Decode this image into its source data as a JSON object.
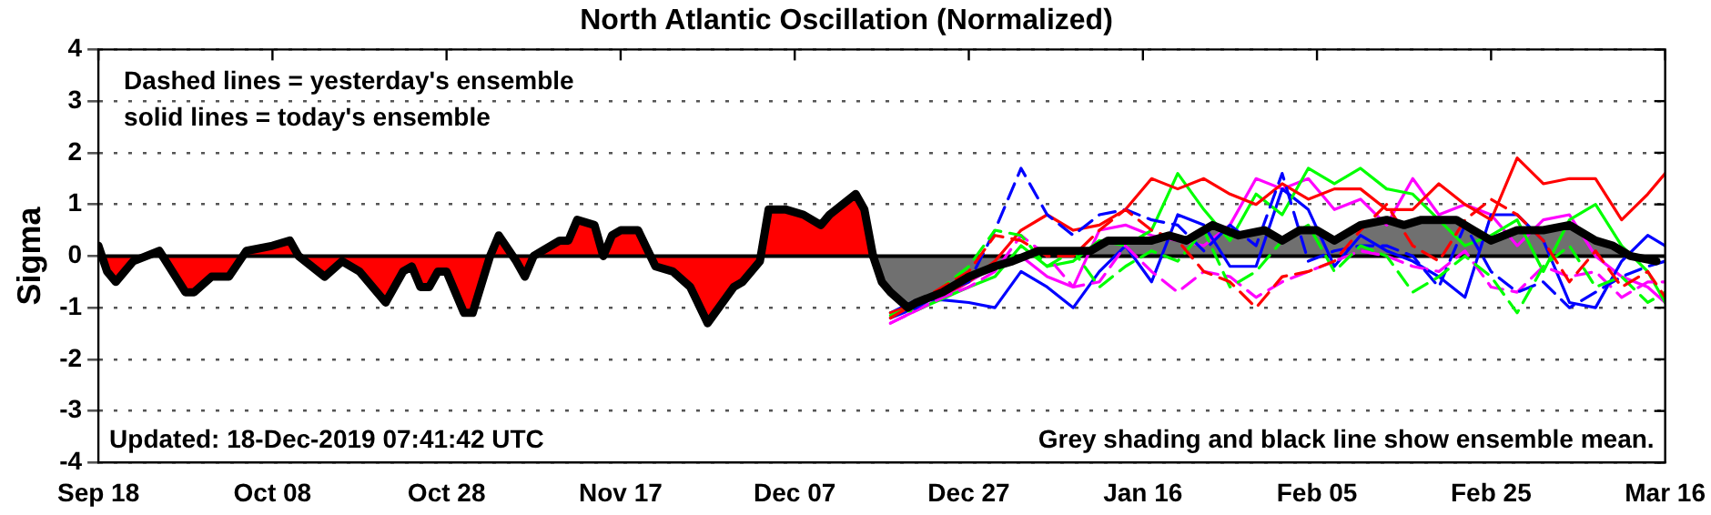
{
  "chart_data": {
    "type": "line",
    "title": "North Atlantic Oscillation (Normalized)",
    "ylabel": "Sigma",
    "annotations": [
      "Dashed lines = yesterday's ensemble",
      "solid lines = today's ensemble",
      "Updated: 18-Dec-2019 07:41:42 UTC",
      "Grey shading and black line show ensemble mean."
    ],
    "x": [
      "2019-12-18",
      "2019-12-21",
      "2019-12-24",
      "2019-12-27",
      "2019-12-30",
      "2020-01-02",
      "2020-01-05",
      "2020-01-08",
      "2020-01-11",
      "2020-01-14",
      "2020-01-17",
      "2020-01-20",
      "2020-01-23",
      "2020-01-26",
      "2020-01-29",
      "2020-02-01",
      "2020-02-04",
      "2020-02-07",
      "2020-02-10",
      "2020-02-13",
      "2020-02-16",
      "2020-02-19",
      "2020-02-22",
      "2020-02-25",
      "2020-02-28",
      "2020-03-02",
      "2020-03-05",
      "2020-03-08",
      "2020-03-11",
      "2020-03-14",
      "2020-03-16"
    ],
    "series": [
      {
        "type": "line",
        "color": "#ff0000",
        "line_style": "dashed",
        "values": [
          -1.2,
          -0.9,
          -0.6,
          -0.3,
          0.4,
          0.3,
          0.0,
          0.0,
          0.5,
          0.9,
          0.5,
          0.3,
          -0.3,
          -0.5,
          -1.0,
          -0.4,
          -0.3,
          -0.1,
          0.5,
          1.0,
          0.2,
          -0.1,
          0.7,
          1.1,
          0.8,
          0.3,
          -0.5,
          0.1,
          -0.6,
          -0.3,
          -0.8
        ]
      },
      {
        "type": "line",
        "color": "#00ff00",
        "line_style": "dashed",
        "values": [
          -1.15,
          -0.95,
          -0.6,
          -0.2,
          0.5,
          0.4,
          -0.2,
          0.1,
          -0.6,
          -0.2,
          0.1,
          -0.1,
          0.5,
          -0.6,
          -0.3,
          0.3,
          0.6,
          -0.3,
          0.2,
          0.0,
          -0.7,
          -0.4,
          0.0,
          -0.4,
          -1.1,
          -0.2,
          0.2,
          -0.6,
          -0.4,
          -0.9,
          -0.7
        ]
      },
      {
        "type": "line",
        "color": "#0000ff",
        "line_style": "dashed",
        "values": [
          -1.2,
          -1.0,
          -0.7,
          -0.5,
          0.5,
          1.7,
          0.8,
          0.4,
          0.8,
          0.9,
          0.7,
          0.6,
          0.1,
          0.6,
          0.2,
          1.6,
          -0.1,
          0.1,
          0.2,
          0.2,
          0.0,
          -0.6,
          0.6,
          -0.3,
          -0.7,
          -0.5,
          -1.0,
          -0.7,
          -0.4,
          -0.2,
          -0.1
        ]
      },
      {
        "type": "line",
        "color": "#ff00ff",
        "line_style": "dashed",
        "values": [
          -1.3,
          -1.05,
          -0.8,
          -0.6,
          -0.3,
          0.4,
          0.0,
          -0.6,
          -0.5,
          0.2,
          -0.3,
          -0.7,
          -0.3,
          -0.4,
          -0.8,
          -0.5,
          -0.3,
          -0.1,
          0.1,
          0.0,
          -0.2,
          -0.3,
          0.1,
          -0.6,
          -0.7,
          -0.2,
          -0.4,
          -0.3,
          -0.8,
          -0.5,
          -0.5
        ]
      },
      {
        "type": "line",
        "color": "#ff0000",
        "line_style": "solid",
        "values": [
          -1.1,
          null,
          -0.75,
          -0.5,
          -0.1,
          0.5,
          0.8,
          0.5,
          0.6,
          0.9,
          1.5,
          1.3,
          1.5,
          1.2,
          1.0,
          1.4,
          1.1,
          1.3,
          1.3,
          0.9,
          0.9,
          1.4,
          1.0,
          0.7,
          1.9,
          1.4,
          1.5,
          1.5,
          0.7,
          1.2,
          1.6
        ]
      },
      {
        "type": "line",
        "color": "#00ff00",
        "line_style": "solid",
        "values": [
          -1.1,
          -1.05,
          null,
          -0.6,
          -0.4,
          0.2,
          -0.2,
          -0.1,
          0.3,
          0.2,
          0.5,
          1.6,
          0.9,
          0.3,
          1.2,
          0.8,
          1.7,
          1.4,
          1.7,
          1.3,
          1.2,
          0.7,
          0.2,
          0.4,
          0.7,
          -0.3,
          0.7,
          1.0,
          0.2,
          -0.3,
          -0.9
        ]
      },
      {
        "type": "line",
        "color": "#0000ff",
        "line_style": "solid",
        "values": [
          -1.1,
          -0.85,
          -0.85,
          -0.9,
          -1.0,
          -0.3,
          -0.6,
          -1.0,
          -0.3,
          0.2,
          -0.5,
          0.8,
          0.6,
          -0.2,
          -0.2,
          1.3,
          0.9,
          -0.2,
          0.4,
          0.1,
          -0.1,
          -0.4,
          -0.8,
          0.8,
          0.8,
          0.3,
          -0.9,
          -1.0,
          -0.1,
          0.4,
          0.2
        ]
      },
      {
        "type": "line",
        "color": "#ff00ff",
        "line_style": "solid",
        "values": [
          -1.3,
          -1.05,
          -0.8,
          -0.5,
          -0.2,
          0.0,
          -0.4,
          -0.6,
          0.5,
          0.6,
          0.4,
          0.3,
          0.2,
          0.6,
          1.5,
          1.3,
          1.5,
          0.9,
          1.1,
          0.6,
          1.5,
          0.8,
          1.0,
          0.8,
          0.2,
          0.7,
          0.8,
          0.0,
          -0.4,
          -0.6,
          -0.9
        ]
      },
      {
        "type": "area",
        "color": "#ff0000",
        "x": [
          "2019-09-18",
          "2019-09-19",
          "2019-09-20",
          "2019-09-22",
          "2019-09-25",
          "2019-09-28",
          "2019-09-29",
          "2019-10-01",
          "2019-10-03",
          "2019-10-05",
          "2019-10-08",
          "2019-10-10",
          "2019-10-11",
          "2019-10-14",
          "2019-10-16",
          "2019-10-18",
          "2019-10-21",
          "2019-10-23",
          "2019-10-24",
          "2019-10-25",
          "2019-10-26",
          "2019-10-27",
          "2019-10-28",
          "2019-10-30",
          "2019-10-31",
          "2019-11-02",
          "2019-11-03",
          "2019-11-05",
          "2019-11-06",
          "2019-11-07",
          "2019-11-08",
          "2019-11-10",
          "2019-11-11",
          "2019-11-12",
          "2019-11-14",
          "2019-11-15",
          "2019-11-16",
          "2019-11-17",
          "2019-11-19",
          "2019-11-21",
          "2019-11-23",
          "2019-11-25",
          "2019-11-27",
          "2019-11-30",
          "2019-12-01",
          "2019-12-03",
          "2019-12-04",
          "2019-12-06",
          "2019-12-08",
          "2019-12-10",
          "2019-12-11",
          "2019-12-14",
          "2019-12-15",
          "2019-12-16"
        ],
        "values": [
          0.2,
          -0.3,
          -0.5,
          -0.1,
          0.1,
          -0.7,
          -0.7,
          -0.4,
          -0.4,
          0.1,
          0.2,
          0.3,
          0.0,
          -0.4,
          -0.1,
          -0.3,
          -0.9,
          -0.3,
          -0.2,
          -0.6,
          -0.6,
          -0.3,
          -0.3,
          -1.1,
          -1.1,
          0.0,
          0.4,
          -0.1,
          -0.4,
          0.0,
          0.1,
          0.3,
          0.3,
          0.7,
          0.6,
          0.0,
          0.4,
          0.5,
          0.5,
          -0.2,
          -0.3,
          -0.6,
          -1.3,
          -0.6,
          -0.5,
          -0.1,
          0.9,
          0.9,
          0.8,
          0.6,
          0.8,
          1.2,
          0.9,
          0.0
        ]
      },
      {
        "type": "area",
        "color": "#707070",
        "x": [
          "2019-12-16",
          "2019-12-17",
          "2019-12-18",
          "2019-12-20",
          "2019-12-21",
          "2019-12-24",
          "2019-12-27",
          "2019-12-30",
          "2020-01-01",
          "2020-01-04",
          "2020-01-07",
          "2020-01-10",
          "2020-01-12",
          "2020-01-15",
          "2020-01-17",
          "2020-01-19",
          "2020-01-21",
          "2020-01-22",
          "2020-01-24",
          "2020-01-27",
          "2020-01-30",
          "2020-02-01",
          "2020-02-03",
          "2020-02-05",
          "2020-02-07",
          "2020-02-10",
          "2020-02-13",
          "2020-02-15",
          "2020-02-17",
          "2020-02-21",
          "2020-02-23",
          "2020-02-25",
          "2020-02-28",
          "2020-03-02",
          "2020-03-05",
          "2020-03-08",
          "2020-03-10",
          "2020-03-12",
          "2020-03-15"
        ],
        "values": [
          0.0,
          -0.5,
          -0.7,
          -1.0,
          -0.9,
          -0.7,
          -0.4,
          -0.2,
          -0.1,
          0.1,
          0.1,
          0.1,
          0.3,
          0.3,
          0.3,
          0.4,
          0.3,
          0.4,
          0.6,
          0.4,
          0.5,
          0.3,
          0.5,
          0.5,
          0.3,
          0.6,
          0.7,
          0.6,
          0.7,
          0.7,
          0.5,
          0.3,
          0.5,
          0.5,
          0.6,
          0.3,
          0.2,
          0.0,
          -0.1
        ]
      }
    ],
    "xlim": [
      "2019-09-18",
      "2020-03-16"
    ],
    "xticks": [
      {
        "value": "2019-09-18",
        "label": "Sep 18"
      },
      {
        "value": "2019-10-08",
        "label": "Oct 08"
      },
      {
        "value": "2019-10-28",
        "label": "Oct 28"
      },
      {
        "value": "2019-11-17",
        "label": "Nov 17"
      },
      {
        "value": "2019-12-07",
        "label": "Dec 07"
      },
      {
        "value": "2019-12-27",
        "label": "Dec 27"
      },
      {
        "value": "2020-01-16",
        "label": "Jan 16"
      },
      {
        "value": "2020-02-05",
        "label": "Feb 05"
      },
      {
        "value": "2020-02-25",
        "label": "Feb 25"
      },
      {
        "value": "2020-03-16",
        "label": "Mar 16"
      }
    ],
    "ylim": [
      -4,
      4
    ],
    "yticks": [
      -4,
      -3,
      -2,
      -1,
      0,
      1,
      2,
      3,
      4
    ],
    "ref_lines": [
      {
        "axis": "y",
        "value": 0,
        "color": "#000000"
      }
    ],
    "grid": "y",
    "legend": false,
    "marker": "none"
  }
}
